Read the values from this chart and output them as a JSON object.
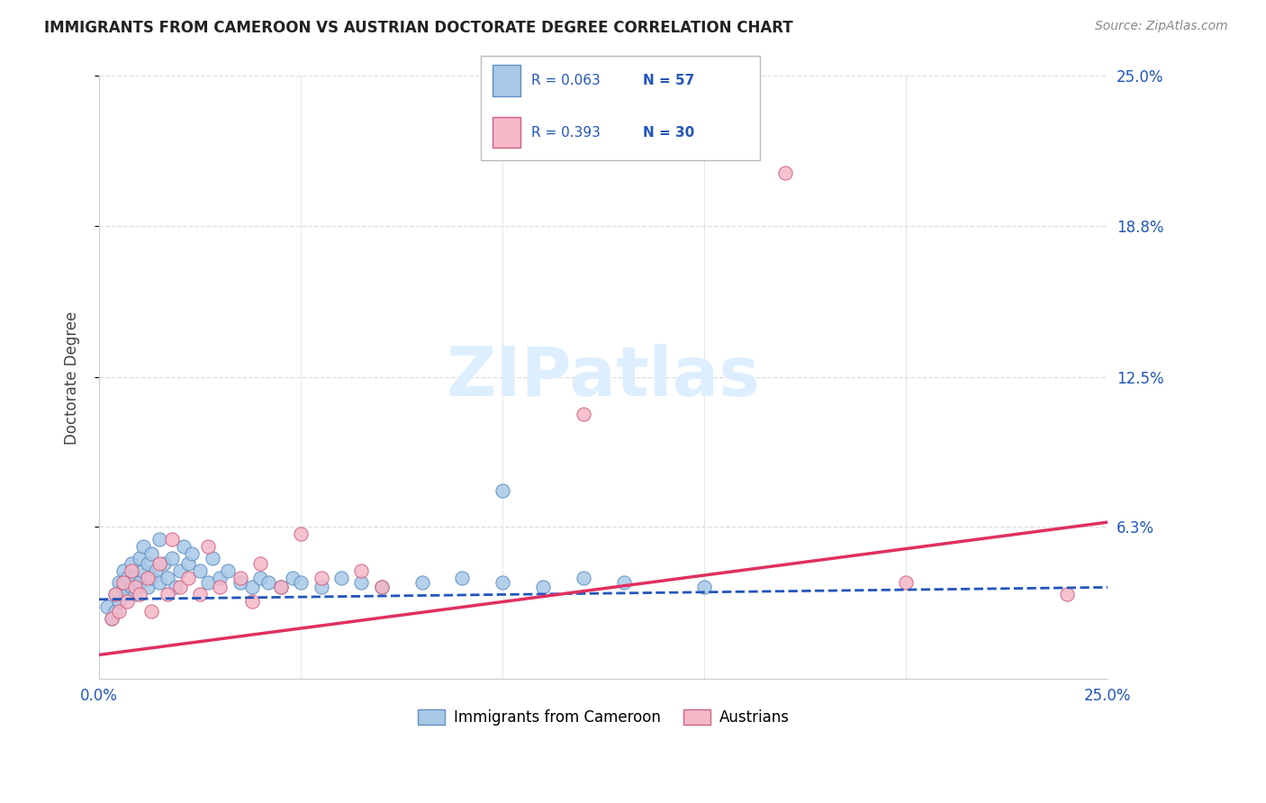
{
  "title": "IMMIGRANTS FROM CAMEROON VS AUSTRIAN DOCTORATE DEGREE CORRELATION CHART",
  "source": "Source: ZipAtlas.com",
  "ylabel": "Doctorate Degree",
  "xlim": [
    0.0,
    0.25
  ],
  "ylim": [
    0.0,
    0.25
  ],
  "y_tick_vals": [
    0.063,
    0.125,
    0.188,
    0.25
  ],
  "y_tick_labels": [
    "6.3%",
    "12.5%",
    "18.8%",
    "25.0%"
  ],
  "legend_label_blue": "Immigrants from Cameroon",
  "legend_label_pink": "Austrians",
  "blue_color": "#a8c8e8",
  "blue_edge_color": "#6090c0",
  "blue_line_color": "#2255bb",
  "pink_color": "#f5b8c8",
  "pink_edge_color": "#d06080",
  "pink_line_color": "#e03060",
  "watermark_color": "#ddeeff",
  "grid_color": "#dddddd",
  "blue_x": [
    0.002,
    0.003,
    0.004,
    0.004,
    0.005,
    0.005,
    0.006,
    0.006,
    0.007,
    0.007,
    0.008,
    0.008,
    0.009,
    0.009,
    0.01,
    0.01,
    0.011,
    0.011,
    0.012,
    0.012,
    0.013,
    0.013,
    0.014,
    0.015,
    0.015,
    0.016,
    0.017,
    0.018,
    0.019,
    0.02,
    0.021,
    0.022,
    0.023,
    0.025,
    0.027,
    0.028,
    0.03,
    0.032,
    0.035,
    0.038,
    0.04,
    0.042,
    0.045,
    0.048,
    0.05,
    0.055,
    0.06,
    0.065,
    0.07,
    0.08,
    0.09,
    0.1,
    0.11,
    0.12,
    0.13,
    0.15,
    0.1
  ],
  "blue_y": [
    0.03,
    0.025,
    0.035,
    0.028,
    0.04,
    0.032,
    0.038,
    0.045,
    0.042,
    0.035,
    0.048,
    0.038,
    0.042,
    0.035,
    0.05,
    0.04,
    0.055,
    0.045,
    0.048,
    0.038,
    0.042,
    0.052,
    0.045,
    0.058,
    0.04,
    0.048,
    0.042,
    0.05,
    0.038,
    0.045,
    0.055,
    0.048,
    0.052,
    0.045,
    0.04,
    0.05,
    0.042,
    0.045,
    0.04,
    0.038,
    0.042,
    0.04,
    0.038,
    0.042,
    0.04,
    0.038,
    0.042,
    0.04,
    0.038,
    0.04,
    0.042,
    0.04,
    0.038,
    0.042,
    0.04,
    0.038,
    0.078
  ],
  "pink_x": [
    0.003,
    0.004,
    0.005,
    0.006,
    0.007,
    0.008,
    0.009,
    0.01,
    0.012,
    0.013,
    0.015,
    0.017,
    0.018,
    0.02,
    0.022,
    0.025,
    0.027,
    0.03,
    0.035,
    0.038,
    0.04,
    0.045,
    0.05,
    0.055,
    0.065,
    0.07,
    0.12,
    0.17,
    0.2,
    0.24
  ],
  "pink_y": [
    0.025,
    0.035,
    0.028,
    0.04,
    0.032,
    0.045,
    0.038,
    0.035,
    0.042,
    0.028,
    0.048,
    0.035,
    0.058,
    0.038,
    0.042,
    0.035,
    0.055,
    0.038,
    0.042,
    0.032,
    0.048,
    0.038,
    0.06,
    0.042,
    0.045,
    0.038,
    0.11,
    0.21,
    0.04,
    0.035
  ],
  "blue_line_slope": 0.02,
  "blue_line_intercept": 0.033,
  "pink_line_slope": 0.22,
  "pink_line_intercept": 0.01
}
